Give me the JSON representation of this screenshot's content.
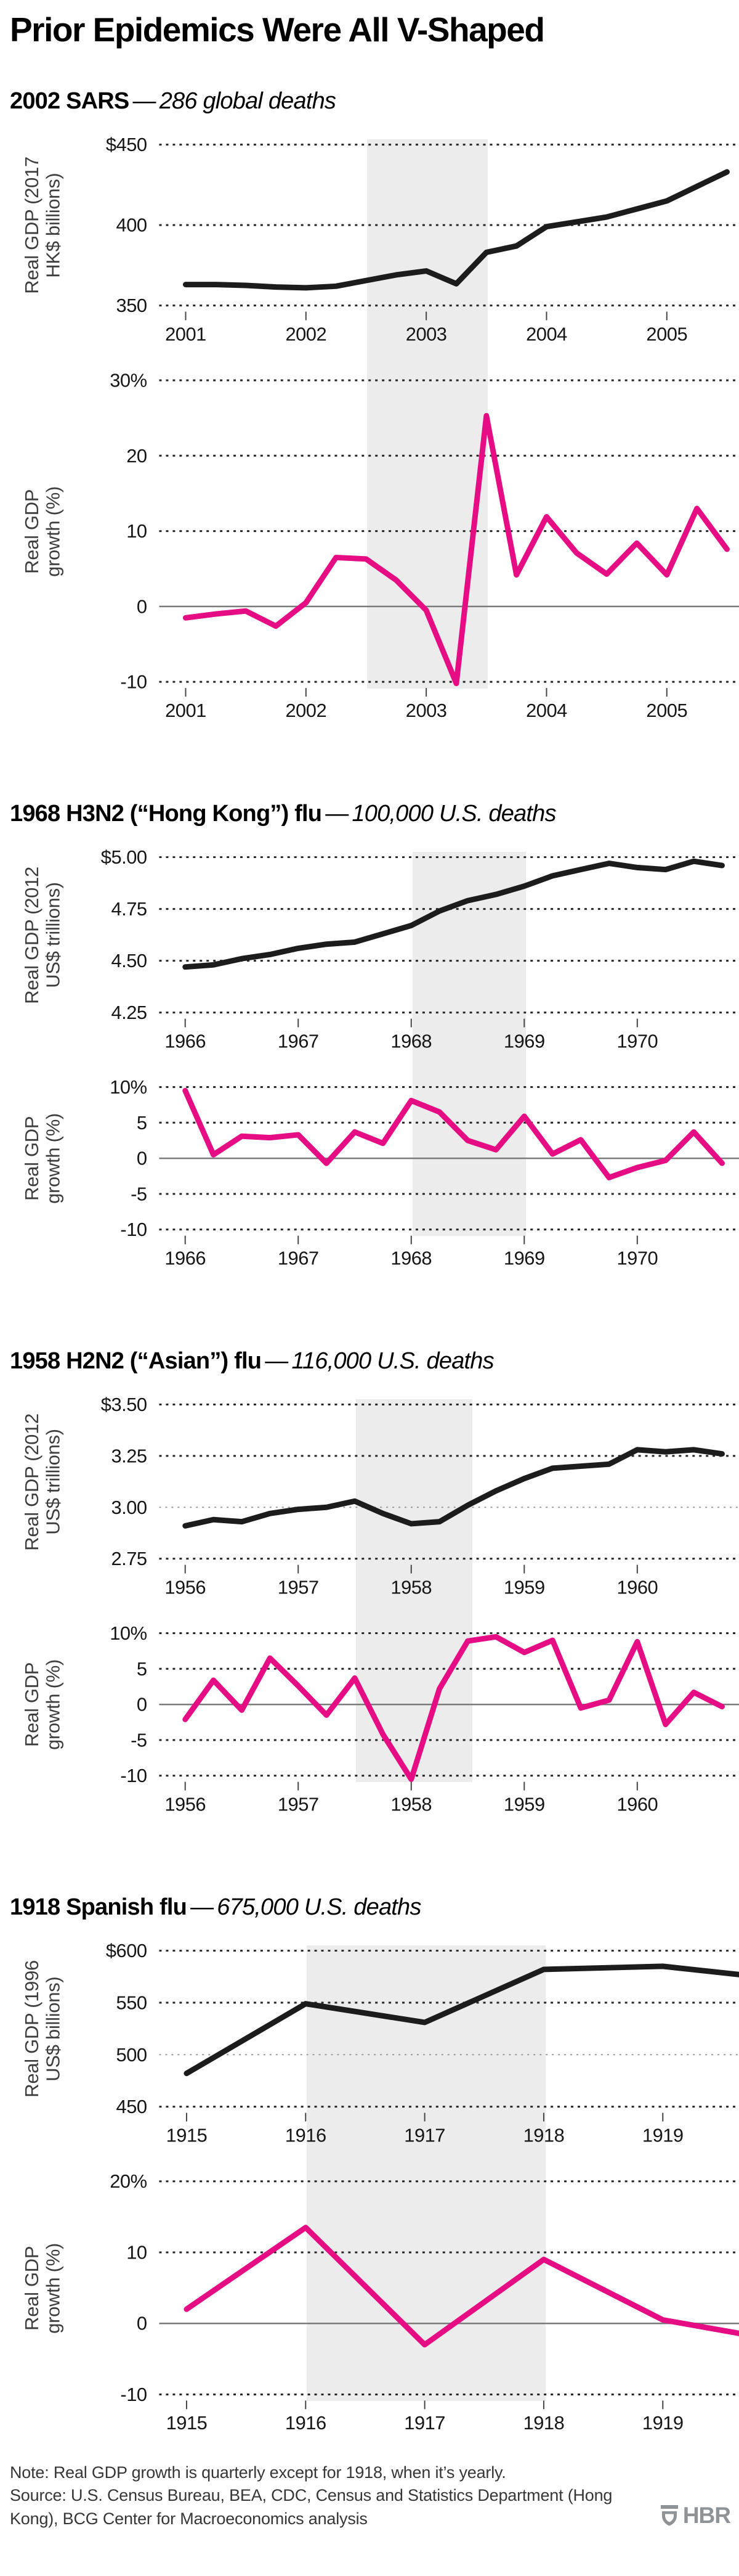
{
  "page": {
    "title": "Prior Epidemics Were All V-Shaped",
    "note": "Note: Real GDP growth is quarterly except for 1918, when it’s yearly.",
    "source": "Source: U.S. Census Bureau, BEA, CDC, Census and Statistics Department (Hong Kong), BCG Center for Macroeconomics analysis",
    "logo_text": "HBR"
  },
  "colors": {
    "level_line": "#1c1c1c",
    "growth_line": "#e60c84",
    "shade": "#ececec",
    "grid": "#262626",
    "grid_light": "#9b9b9b",
    "zero_line": "#7a7a7a",
    "tick_text": "#161616",
    "axis_label": "#3d3d3d",
    "logo_gray": "#8e9397"
  },
  "chart_data": [
    {
      "id": "sars-2002",
      "heading_bold": "2002 SARS",
      "heading_dash": "—",
      "heading_italic": "286 global deaths",
      "level_chart": {
        "type": "line",
        "ylabel": "Real GDP (2017\nHK$ billions)",
        "yticks": [
          {
            "v": 450,
            "label": "$450"
          },
          {
            "v": 400,
            "label": "400"
          },
          {
            "v": 350,
            "label": "350"
          }
        ],
        "xticks": [
          {
            "v": 2001,
            "label": "2001"
          },
          {
            "v": 2002,
            "label": "2002"
          },
          {
            "v": 2003,
            "label": "2003"
          },
          {
            "v": 2004,
            "label": "2004"
          },
          {
            "v": 2005,
            "label": "2005"
          }
        ],
        "x_range": [
          2000.78,
          2005.6
        ],
        "shade": [
          2002.5,
          2003.5
        ],
        "x_start": 2001,
        "x_step": 0.25,
        "values": [
          363,
          363,
          362.5,
          361.5,
          361,
          362,
          365.5,
          369,
          371.5,
          363.5,
          383,
          387,
          399,
          402,
          405,
          410,
          415,
          424,
          433
        ]
      },
      "growth_chart": {
        "type": "line",
        "ylabel": "Real GDP\ngrowth (%)",
        "yticks": [
          {
            "v": 30,
            "label": "30%"
          },
          {
            "v": 20,
            "label": "20"
          },
          {
            "v": 10,
            "label": "10"
          },
          {
            "v": 0,
            "label": "0",
            "solid": true
          },
          {
            "v": -10,
            "label": "-10"
          }
        ],
        "xticks": [
          {
            "v": 2001,
            "label": "2001"
          },
          {
            "v": 2002,
            "label": "2002"
          },
          {
            "v": 2003,
            "label": "2003"
          },
          {
            "v": 2004,
            "label": "2004"
          },
          {
            "v": 2005,
            "label": "2005"
          }
        ],
        "x_range": [
          2000.78,
          2005.6
        ],
        "shade": [
          2002.5,
          2003.5
        ],
        "x_start": 2001,
        "x_step": 0.25,
        "values": [
          -1.5,
          -1,
          -0.6,
          -2.6,
          0.5,
          6.5,
          6.3,
          3.5,
          -0.5,
          -10.2,
          25.3,
          4.2,
          11.9,
          7.1,
          4.3,
          8.4,
          4.2,
          13,
          7.6
        ]
      }
    },
    {
      "id": "h3n2-1968",
      "heading_bold": "1968 H3N2 (“Hong Kong”) flu",
      "heading_dash": "—",
      "heading_italic": "100,000 U.S. deaths",
      "level_chart": {
        "type": "line",
        "ylabel": "Real GDP (2012\nUS$ trillions)",
        "yticks": [
          {
            "v": 5.0,
            "label": "$5.00"
          },
          {
            "v": 4.75,
            "label": "4.75"
          },
          {
            "v": 4.5,
            "label": "4.50"
          },
          {
            "v": 4.25,
            "label": "4.25"
          }
        ],
        "xticks": [
          {
            "v": 1966,
            "label": "1966"
          },
          {
            "v": 1967,
            "label": "1967"
          },
          {
            "v": 1968,
            "label": "1968"
          },
          {
            "v": 1969,
            "label": "1969"
          },
          {
            "v": 1970,
            "label": "1970"
          }
        ],
        "x_range": [
          1965.77,
          1970.9
        ],
        "shade": [
          1968,
          1969
        ],
        "x_start": 1966,
        "x_step": 0.25,
        "values": [
          4.47,
          4.48,
          4.51,
          4.53,
          4.56,
          4.58,
          4.59,
          4.63,
          4.67,
          4.74,
          4.79,
          4.82,
          4.86,
          4.91,
          4.94,
          4.97,
          4.95,
          4.94,
          4.98,
          4.96
        ]
      },
      "growth_chart": {
        "type": "line",
        "ylabel": "Real GDP\ngrowth (%)",
        "yticks": [
          {
            "v": 10,
            "label": "10%"
          },
          {
            "v": 5,
            "label": "5"
          },
          {
            "v": 0,
            "label": "0",
            "solid": true
          },
          {
            "v": -5,
            "label": "-5"
          },
          {
            "v": -10,
            "label": "-10"
          }
        ],
        "xticks": [
          {
            "v": 1966,
            "label": "1966"
          },
          {
            "v": 1967,
            "label": "1967"
          },
          {
            "v": 1968,
            "label": "1968"
          },
          {
            "v": 1969,
            "label": "1969"
          },
          {
            "v": 1970,
            "label": "1970"
          }
        ],
        "x_range": [
          1965.77,
          1970.9
        ],
        "shade": [
          1968,
          1969
        ],
        "x_start": 1966,
        "x_step": 0.25,
        "values": [
          9.5,
          0.5,
          3.1,
          2.9,
          3.3,
          -0.7,
          3.7,
          2.1,
          8.1,
          6.5,
          2.5,
          1.2,
          5.9,
          0.6,
          2.6,
          -2.7,
          -1.3,
          -0.3,
          3.7,
          -0.7
        ]
      }
    },
    {
      "id": "h2n2-1958",
      "heading_bold": "1958 H2N2 (“Asian”) flu",
      "heading_dash": "—",
      "heading_italic": "116,000 U.S. deaths",
      "level_chart": {
        "type": "line",
        "ylabel": "Real GDP (2012\nUS$ trillions)",
        "yticks": [
          {
            "v": 3.5,
            "label": "$3.50"
          },
          {
            "v": 3.25,
            "label": "3.25"
          },
          {
            "v": 3.0,
            "label": "3.00",
            "light": true
          },
          {
            "v": 2.75,
            "label": "2.75"
          }
        ],
        "xticks": [
          {
            "v": 1956,
            "label": "1956"
          },
          {
            "v": 1957,
            "label": "1957"
          },
          {
            "v": 1958,
            "label": "1958"
          },
          {
            "v": 1959,
            "label": "1959"
          },
          {
            "v": 1960,
            "label": "1960"
          }
        ],
        "x_range": [
          1955.77,
          1960.9
        ],
        "shade": [
          1957.5,
          1958.53
        ],
        "x_start": 1956,
        "x_step": 0.25,
        "values": [
          2.91,
          2.94,
          2.93,
          2.97,
          2.99,
          3.0,
          3.03,
          2.97,
          2.92,
          2.93,
          3.01,
          3.08,
          3.14,
          3.19,
          3.2,
          3.21,
          3.28,
          3.27,
          3.28,
          3.26
        ]
      },
      "growth_chart": {
        "type": "line",
        "ylabel": "Real GDP\ngrowth (%)",
        "yticks": [
          {
            "v": 10,
            "label": "10%"
          },
          {
            "v": 5,
            "label": "5"
          },
          {
            "v": 0,
            "label": "0",
            "solid": true
          },
          {
            "v": -5,
            "label": "-5"
          },
          {
            "v": -10,
            "label": "-10"
          }
        ],
        "xticks": [
          {
            "v": 1956,
            "label": "1956"
          },
          {
            "v": 1957,
            "label": "1957"
          },
          {
            "v": 1958,
            "label": "1958"
          },
          {
            "v": 1959,
            "label": "1959"
          },
          {
            "v": 1960,
            "label": "1960"
          }
        ],
        "x_range": [
          1955.77,
          1960.9
        ],
        "shade": [
          1957.5,
          1958.53
        ],
        "x_start": 1956,
        "x_step": 0.25,
        "values": [
          -2.1,
          3.4,
          -0.8,
          6.5,
          2.6,
          -1.5,
          3.7,
          -4.2,
          -10.5,
          2.2,
          8.9,
          9.5,
          7.3,
          9,
          -0.5,
          0.6,
          8.8,
          -2.8,
          1.7,
          -0.3
        ]
      }
    },
    {
      "id": "spanish-flu-1918",
      "heading_bold": "1918 Spanish flu",
      "heading_dash": "—",
      "heading_italic": "675,000 U.S. deaths",
      "level_chart": {
        "type": "line",
        "ylabel": "Real GDP (1996\nUS$ billions)",
        "yticks": [
          {
            "v": 600,
            "label": "$600"
          },
          {
            "v": 550,
            "label": "550"
          },
          {
            "v": 500,
            "label": "500",
            "light": true
          },
          {
            "v": 450,
            "label": "450"
          }
        ],
        "xticks": [
          {
            "v": 1915,
            "label": "1915"
          },
          {
            "v": 1916,
            "label": "1916"
          },
          {
            "v": 1917,
            "label": "1917"
          },
          {
            "v": 1918,
            "label": "1918"
          },
          {
            "v": 1919,
            "label": "1919"
          }
        ],
        "x_range": [
          1914.77,
          1919.64
        ],
        "shade": [
          1916,
          1918
        ],
        "x": [
          1915,
          1916,
          1917,
          1918,
          1919,
          1919.64
        ],
        "values": [
          482,
          549,
          531,
          582,
          585,
          577
        ]
      },
      "growth_chart": {
        "type": "line",
        "ylabel": "Real GDP\ngrowth (%)",
        "yticks": [
          {
            "v": 20,
            "label": "20%"
          },
          {
            "v": 10,
            "label": "10"
          },
          {
            "v": 0,
            "label": "0",
            "solid": true
          },
          {
            "v": -10,
            "label": "-10"
          }
        ],
        "xticks": [
          {
            "v": 1915,
            "label": "1915"
          },
          {
            "v": 1916,
            "label": "1916"
          },
          {
            "v": 1917,
            "label": "1917"
          },
          {
            "v": 1918,
            "label": "1918"
          },
          {
            "v": 1919,
            "label": "1919"
          }
        ],
        "x_range": [
          1914.77,
          1919.64
        ],
        "shade": [
          1916,
          1918
        ],
        "x": [
          1915,
          1916,
          1917,
          1918,
          1919,
          1919.64
        ],
        "values": [
          2,
          13.5,
          -3,
          9,
          0.5,
          -1.4
        ]
      }
    }
  ]
}
